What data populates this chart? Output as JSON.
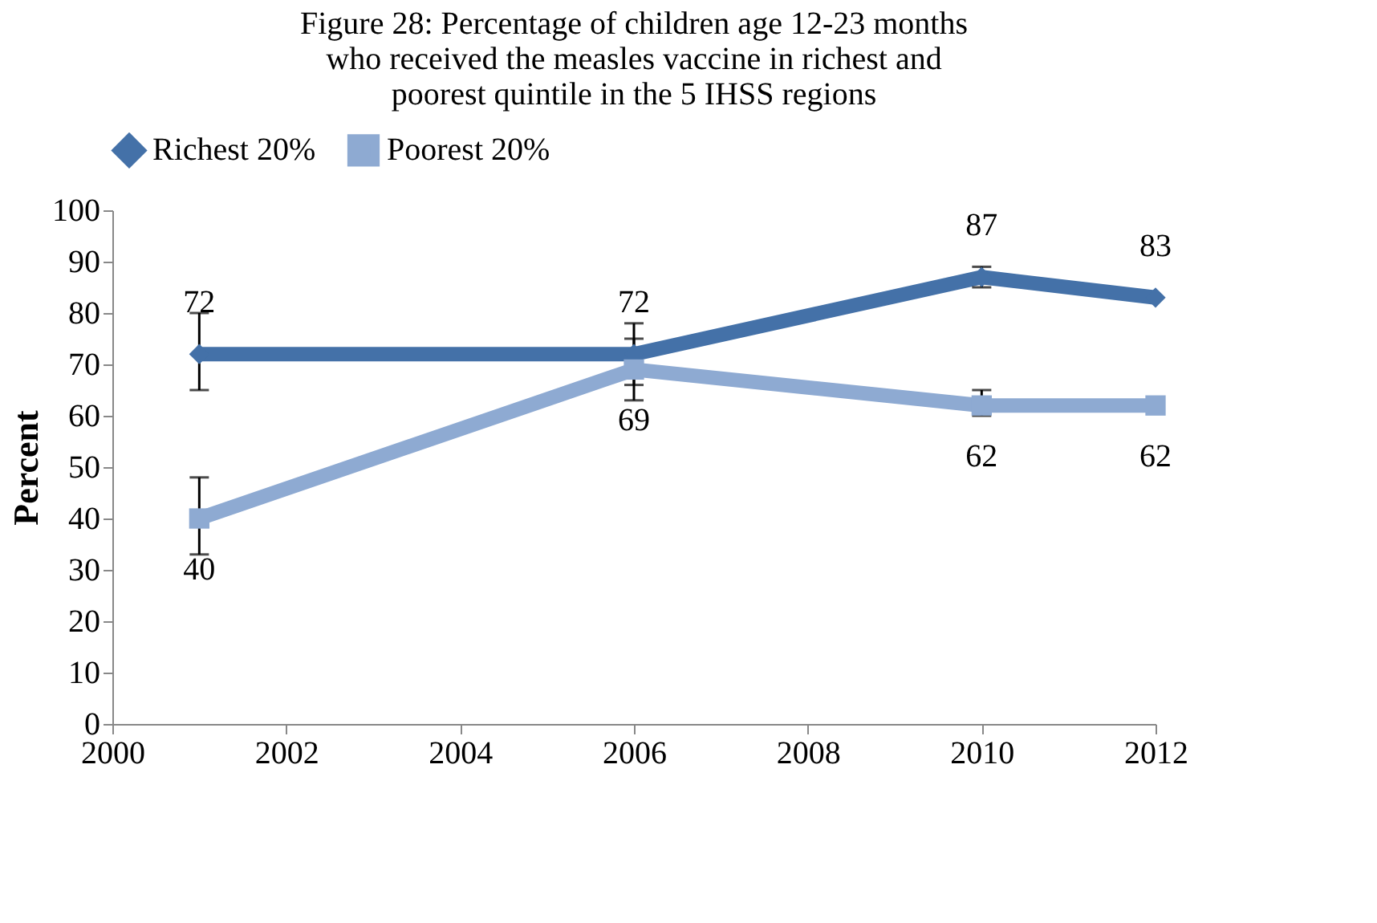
{
  "chart_data": {
    "type": "line",
    "title": "Figure 28: Percentage of children age 12-23 months who received the measles vaccine in richest and poorest quintile in the 5 IHSS regions",
    "ylabel": "Percent",
    "x": [
      2001,
      2006,
      2010,
      2012
    ],
    "series": [
      {
        "name": "Richest 20%",
        "color": "#4471a8",
        "marker": "diamond",
        "values": [
          72,
          72,
          87,
          83
        ],
        "errors": [
          [
            65,
            80
          ],
          [
            66,
            78
          ],
          [
            85,
            89
          ],
          null
        ]
      },
      {
        "name": "Poorest 20%",
        "color": "#8eaad2",
        "marker": "square",
        "values": [
          40,
          69,
          62,
          62
        ],
        "errors": [
          [
            33,
            48
          ],
          [
            63,
            75
          ],
          [
            60,
            65
          ],
          null
        ]
      }
    ],
    "xlim": [
      2000,
      2012
    ],
    "xticks": [
      2000,
      2002,
      2004,
      2006,
      2008,
      2010,
      2012
    ],
    "ylim": [
      0,
      100
    ],
    "yticks": [
      0,
      10,
      20,
      30,
      40,
      50,
      60,
      70,
      80,
      90,
      100
    ],
    "data_labels": true,
    "grid": false,
    "legend": "top"
  }
}
